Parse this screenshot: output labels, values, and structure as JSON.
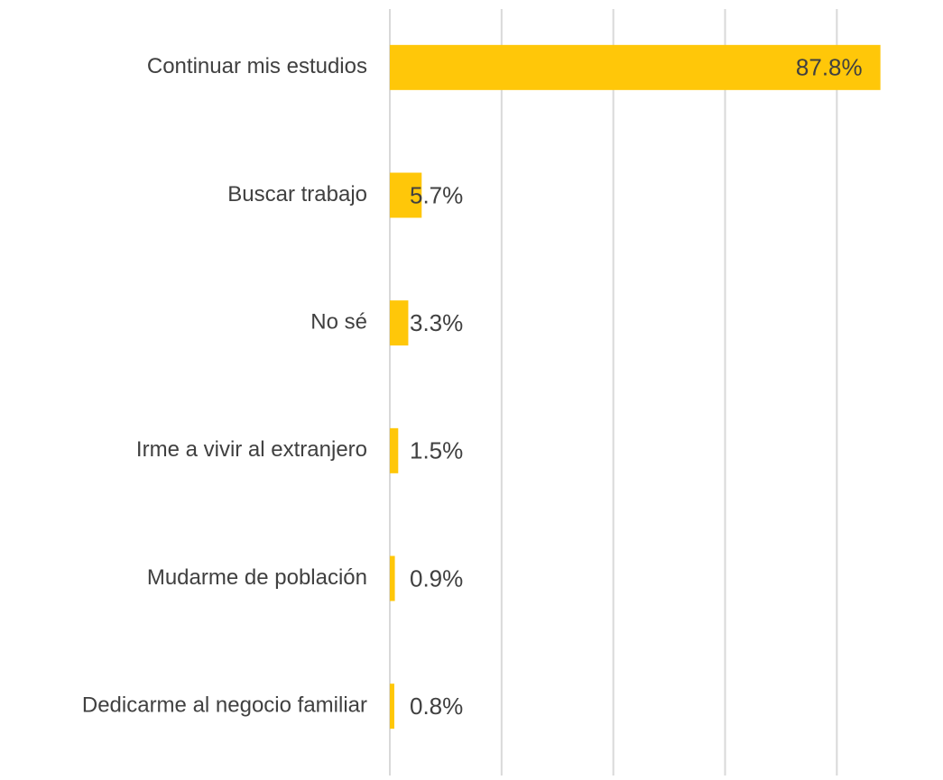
{
  "chart_data": {
    "type": "barh",
    "categories": [
      "Continuar mis estudios",
      "Buscar trabajo",
      "No sé",
      "Irme a vivir al extranjero",
      "Mudarme de población",
      "Dedicarme al negocio familiar"
    ],
    "values": [
      87.8,
      5.7,
      3.3,
      1.5,
      0.9,
      0.8
    ],
    "value_labels": [
      "87.8%",
      "5.7%",
      "3.3%",
      "1.5%",
      "0.9%",
      "0.8%"
    ],
    "color": "#ffc709",
    "xlim": [
      0,
      99
    ],
    "xticks": [
      0,
      20,
      40,
      60,
      80
    ],
    "grid": true
  }
}
